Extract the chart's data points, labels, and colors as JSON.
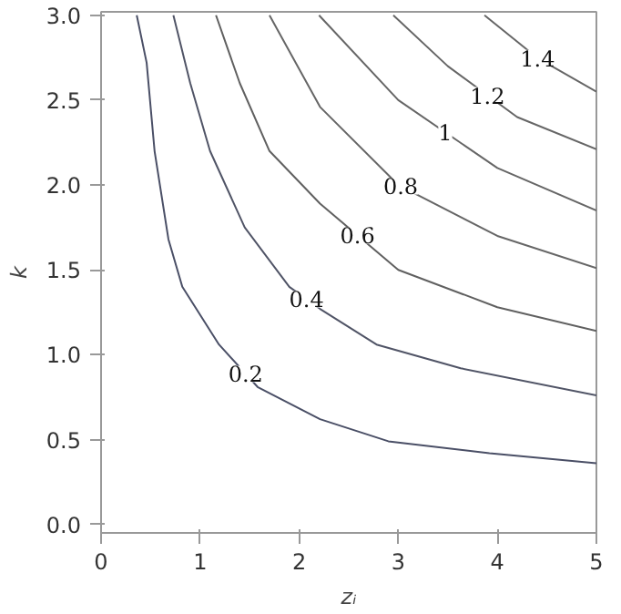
{
  "chart_data": {
    "type": "line",
    "xlabel": "zᵢ",
    "ylabel": "k",
    "xlim": [
      0,
      5
    ],
    "ylim": [
      -0.05,
      3.02
    ],
    "xticks": [
      0,
      1,
      2,
      3,
      4,
      5
    ],
    "yticks": [
      {
        "value": 0,
        "label": "0.0"
      },
      {
        "value": 0.5,
        "label": "0.5"
      },
      {
        "value": 1,
        "label": "1.0"
      },
      {
        "value": 1.5,
        "label": "1.5"
      },
      {
        "value": 2,
        "label": "2.0"
      },
      {
        "value": 2.5,
        "label": "2.5"
      },
      {
        "value": 3,
        "label": "3.0"
      }
    ],
    "grid": false,
    "legend": false,
    "series": [
      {
        "name": "0.2",
        "color": "#4a4f66",
        "x": [
          0.36,
          0.46,
          0.54,
          0.68,
          0.82,
          1.19,
          1.58,
          2.21,
          2.9,
          3.92,
          5
        ],
        "values": [
          3.0,
          2.72,
          2.2,
          1.68,
          1.4,
          1.06,
          0.81,
          0.62,
          0.49,
          0.42,
          0.36
        ]
      },
      {
        "name": "0.4",
        "color": "#505466",
        "x": [
          0.73,
          0.9,
          1.1,
          1.45,
          1.9,
          2.21,
          2.78,
          3.63,
          5
        ],
        "values": [
          3.0,
          2.6,
          2.2,
          1.75,
          1.4,
          1.27,
          1.06,
          0.92,
          0.76
        ]
      },
      {
        "name": "0.6",
        "color": "#606060",
        "x": [
          1.16,
          1.4,
          1.7,
          2.21,
          3.0,
          4.0,
          5
        ],
        "values": [
          3.0,
          2.6,
          2.2,
          1.89,
          1.5,
          1.28,
          1.14
        ]
      },
      {
        "name": "0.8",
        "color": "#666666",
        "x": [
          1.7,
          2.21,
          3.0,
          4.0,
          5
        ],
        "values": [
          3.0,
          2.46,
          2.0,
          1.7,
          1.51
        ]
      },
      {
        "name": "1",
        "color": "#666666",
        "x": [
          2.2,
          3.0,
          4.0,
          5
        ],
        "values": [
          3.0,
          2.5,
          2.1,
          1.85
        ]
      },
      {
        "name": "1.2",
        "color": "#666666",
        "x": [
          2.95,
          3.5,
          4.2,
          5
        ],
        "values": [
          3.0,
          2.7,
          2.4,
          2.21
        ]
      },
      {
        "name": "1.4",
        "color": "#666666",
        "x": [
          3.87,
          4.4,
          5
        ],
        "values": [
          3.0,
          2.75,
          2.55
        ]
      }
    ]
  }
}
